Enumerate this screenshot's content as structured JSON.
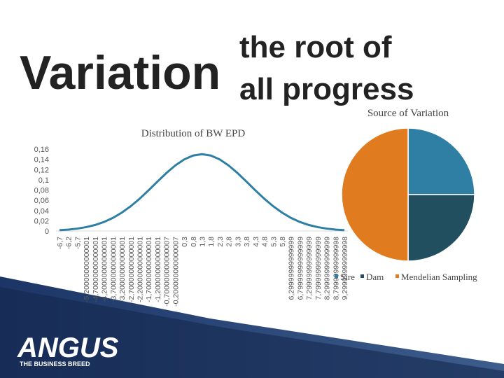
{
  "header": {
    "title": "Variation",
    "subtitle_lines": [
      "the root of",
      "all progress"
    ]
  },
  "logo": {
    "name": "ANGUS",
    "tagline": "THE BUSINESS BREED"
  },
  "chart_data": [
    {
      "type": "line",
      "title": "Distribution of BW EPD",
      "color": "#2e7fa3",
      "categories": [
        "-6,7",
        "-6,2",
        "-5,7",
        "-5,20000000000001",
        "-4,70000000000001",
        "-4,20000000000001",
        "-3,70000000000001",
        "-3,20000000000001",
        "-2,70000000000001",
        "-2,20000000000001",
        "-1,70000000000001",
        "-1,20000000000001",
        "-0,700000000000007",
        "-0,200000000000007",
        "0,3",
        "0,8",
        "1,3",
        "1,8",
        "2,3",
        "2,8",
        "3,3",
        "3,8",
        "4,3",
        "4,8",
        "5,3",
        "5,8",
        "6,29999999999999",
        "6,79999999999999",
        "7,29999999999999",
        "7,79999999999999",
        "8,29999999999999",
        "8,79999999999998",
        "9,29999999999998"
      ],
      "values": [
        0.0016,
        0.0028,
        0.0047,
        0.0076,
        0.0118,
        0.0177,
        0.0256,
        0.0359,
        0.0484,
        0.0631,
        0.0794,
        0.0965,
        0.1131,
        0.128,
        0.1398,
        0.1474,
        0.15,
        0.1474,
        0.1398,
        0.128,
        0.1131,
        0.0965,
        0.0794,
        0.0631,
        0.0484,
        0.0359,
        0.0256,
        0.0177,
        0.0118,
        0.0076,
        0.0047,
        0.0028,
        0.0016
      ],
      "ylim": [
        0,
        0.16
      ],
      "yticks": [
        0,
        {
          "value": 0.02,
          "label": "0,02"
        },
        {
          "value": 0.04,
          "label": "0,04"
        },
        {
          "value": 0.06,
          "label": "0,06"
        },
        {
          "value": 0.08,
          "label": "0,08"
        },
        {
          "value": 0.1,
          "label": "0,1"
        },
        {
          "value": 0.12,
          "label": "0,12"
        },
        {
          "value": 0.14,
          "label": "0,14"
        },
        {
          "value": 0.16,
          "label": "0,16"
        }
      ]
    },
    {
      "type": "pie",
      "title": "Source of Variation",
      "categories": [
        "Sire",
        "Dam",
        "Mendelian Sampling"
      ],
      "values": [
        25,
        25,
        50
      ],
      "colors": [
        "#2e7fa3",
        "#214f60",
        "#e07b1f"
      ]
    }
  ]
}
